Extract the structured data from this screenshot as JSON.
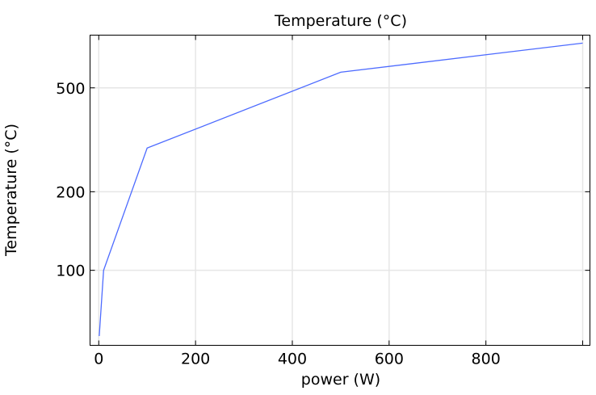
{
  "chart_data": {
    "type": "line",
    "title": "Temperature (°C)",
    "xlabel": "power (W)",
    "ylabel": "Temperature (°C)",
    "xlim": [
      -18,
      1015
    ],
    "ylim": [
      51.6,
      796
    ],
    "yscale": "log",
    "grid": true,
    "xticks": [
      0,
      200,
      400,
      600,
      800,
      1000
    ],
    "xtick_labels": [
      "0",
      "200",
      "400",
      "600",
      "800",
      ""
    ],
    "yticks": [
      100,
      200,
      500
    ],
    "ytick_labels": [
      "100",
      "200",
      "500"
    ],
    "series": [
      {
        "name": "Temperature",
        "color": "#4d6bff",
        "x": [
          1,
          10,
          100,
          500,
          1000
        ],
        "y": [
          56,
          100,
          294,
          574,
          742
        ]
      }
    ]
  }
}
